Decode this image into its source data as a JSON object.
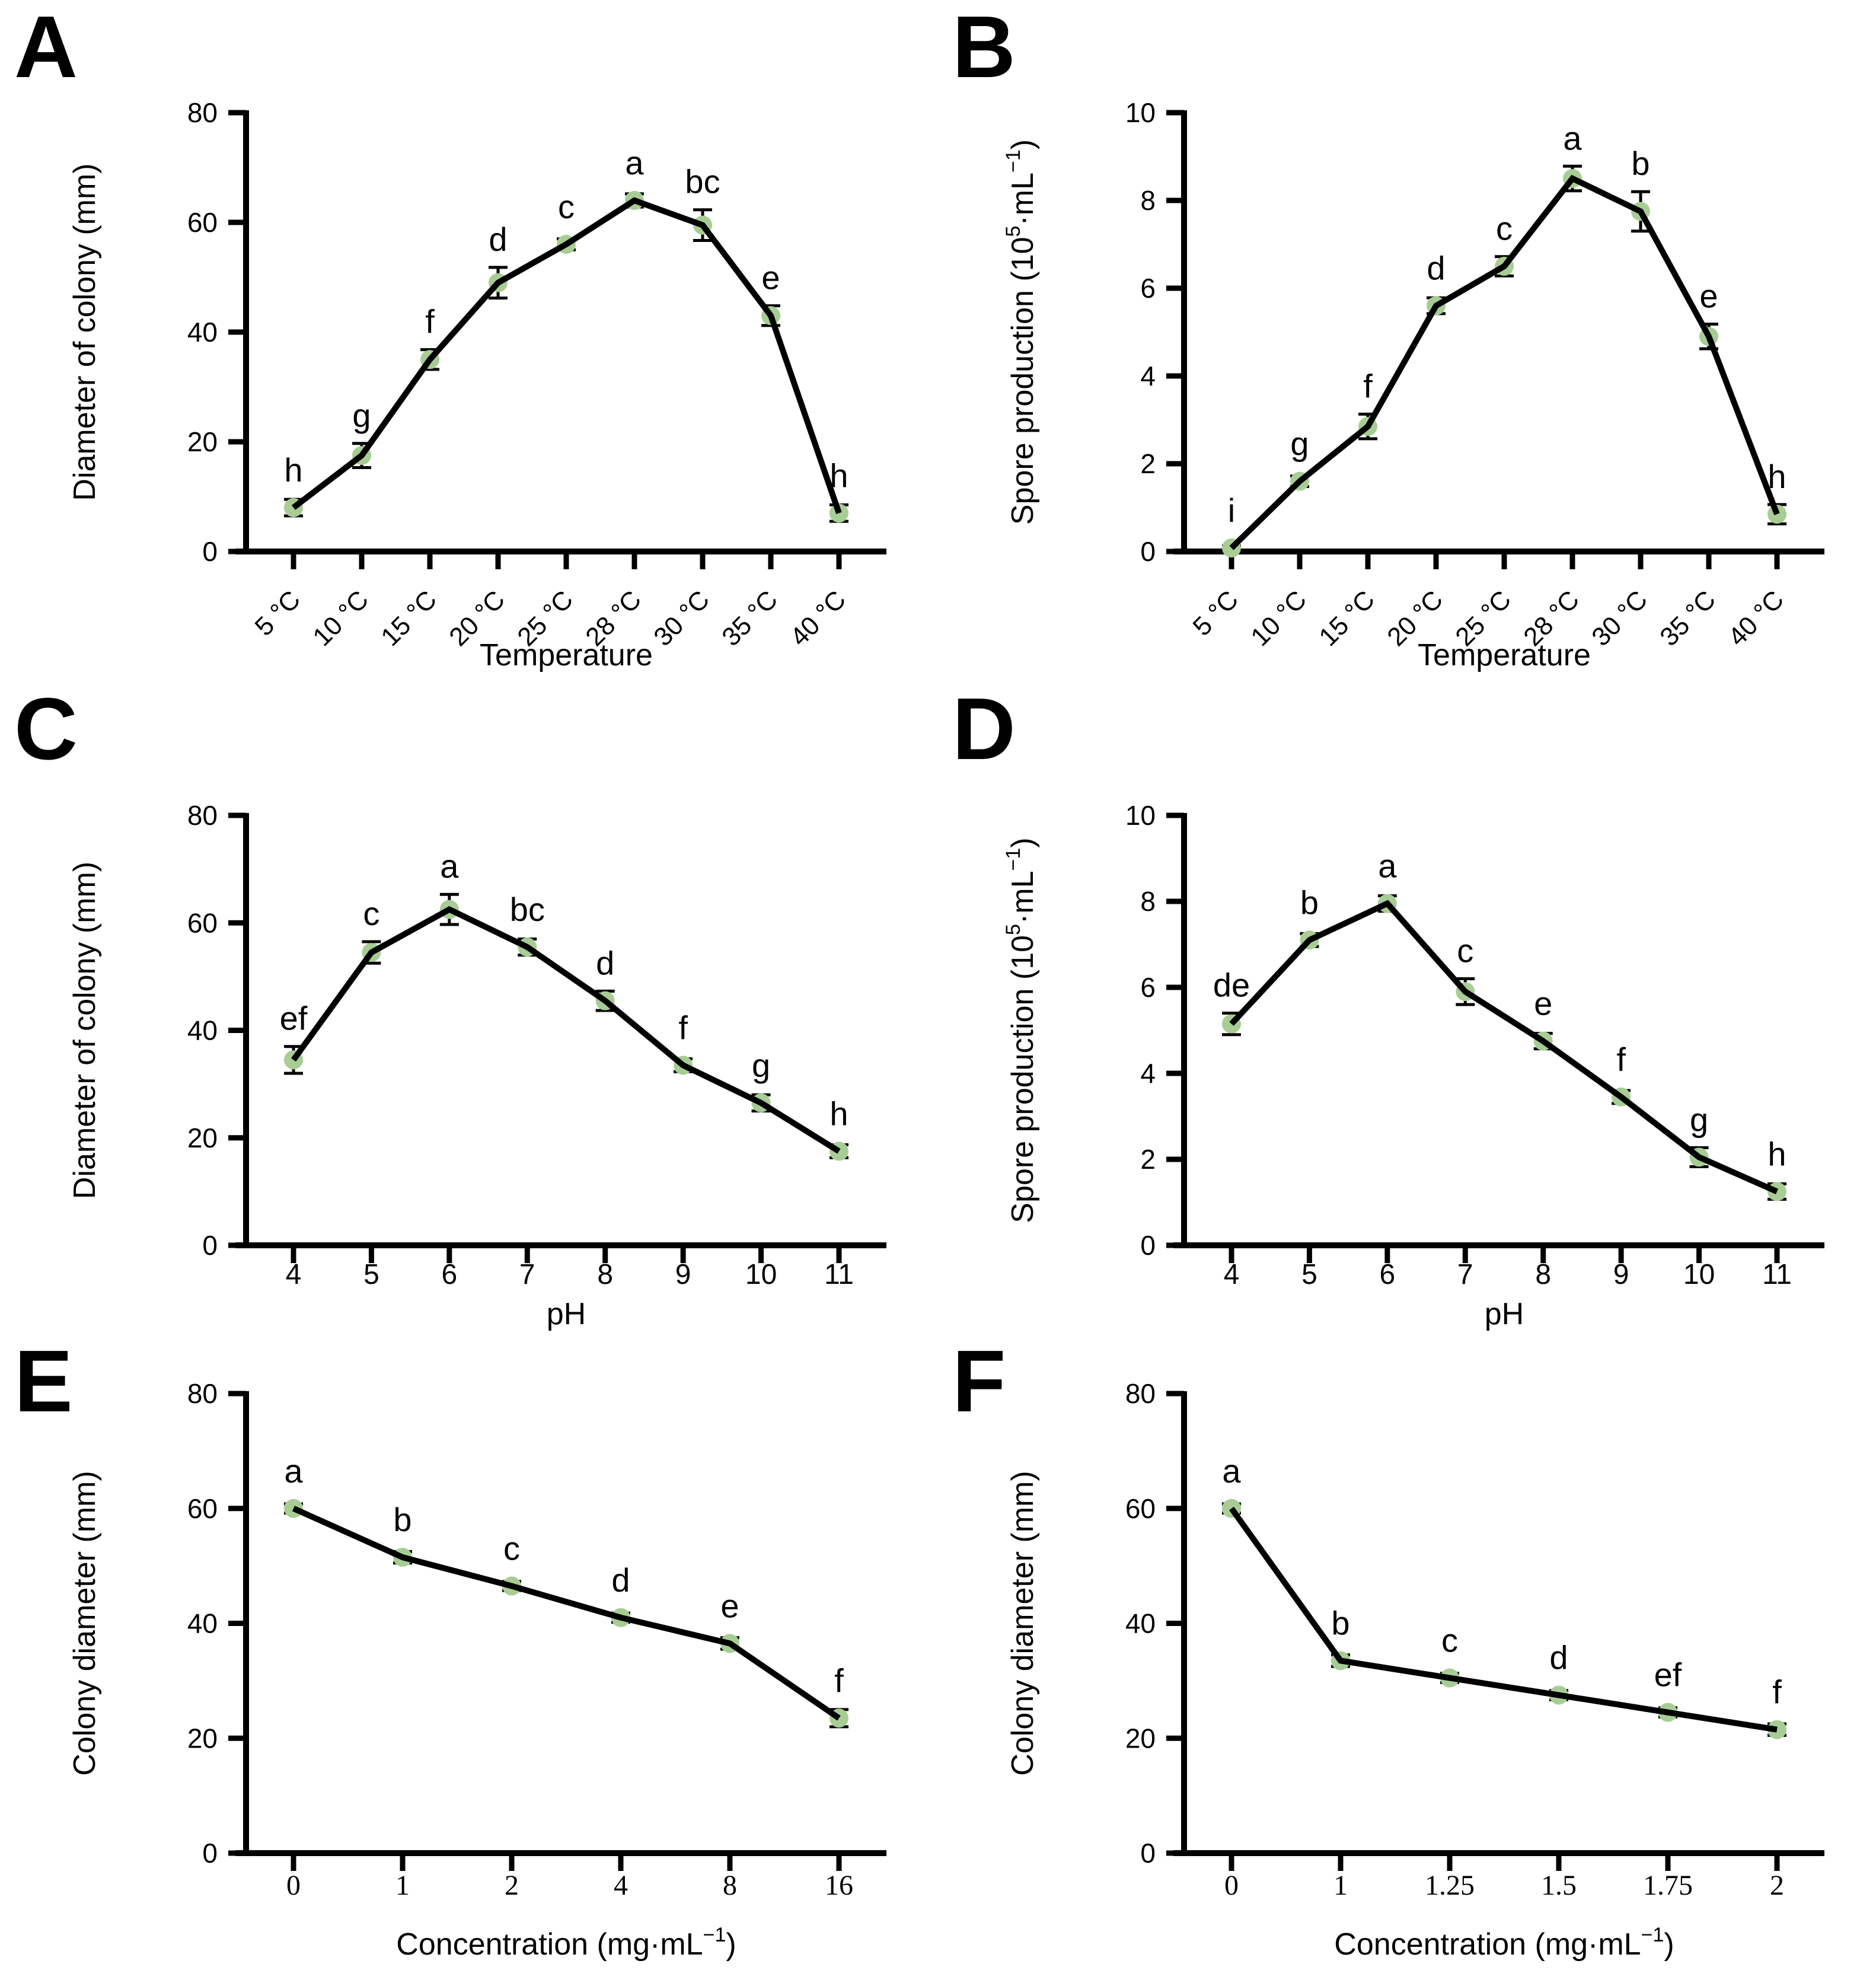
{
  "figure": {
    "background_color": "#ffffff",
    "line_color": "#000000",
    "marker_color": "#a7cd95",
    "text_color": "#000000"
  },
  "chart_data": [
    {
      "type": "line",
      "panel": "A",
      "xlabel": "Temperature",
      "ylabel": "Diameter of colony (mm)",
      "ylim": [
        0,
        80
      ],
      "yticks": [
        0,
        20,
        40,
        60,
        80
      ],
      "rotated_x_labels": true,
      "categories": [
        "5 °C",
        "10 °C",
        "15 °C",
        "20 °C",
        "25 °C",
        "28 °C",
        "30 °C",
        "35 °C",
        "40 °C"
      ],
      "values": [
        8,
        17.5,
        35,
        49,
        56,
        64,
        59.5,
        43,
        7
      ],
      "errors": [
        1.5,
        2.2,
        1.8,
        2.8,
        1.0,
        1.2,
        2.8,
        1.8,
        1.5
      ],
      "point_labels": [
        "h",
        "g",
        "f",
        "d",
        "c",
        "a",
        "bc",
        "e",
        "h"
      ]
    },
    {
      "type": "line",
      "panel": "B",
      "xlabel": "Temperature",
      "ylabel": "Spore production (10⁵·mL⁻¹)",
      "ylim": [
        0,
        10
      ],
      "yticks": [
        0,
        2,
        4,
        6,
        8,
        10
      ],
      "rotated_x_labels": true,
      "categories": [
        "5 °C",
        "10 °C",
        "15 °C",
        "20 °C",
        "25 °C",
        "28 °C",
        "30 °C",
        "35 °C",
        "40 °C"
      ],
      "values": [
        0.08,
        1.6,
        2.85,
        5.6,
        6.5,
        8.5,
        7.75,
        4.9,
        0.85
      ],
      "errors": [
        0.05,
        0.12,
        0.28,
        0.18,
        0.22,
        0.28,
        0.45,
        0.28,
        0.22
      ],
      "point_labels": [
        "i",
        "g",
        "f",
        "d",
        "c",
        "a",
        "b",
        "e",
        "h"
      ]
    },
    {
      "type": "line",
      "panel": "C",
      "xlabel": "pH",
      "ylabel": "Diameter of colony (mm)",
      "ylim": [
        0,
        80
      ],
      "yticks": [
        0,
        20,
        40,
        60,
        80
      ],
      "rotated_x_labels": false,
      "categories": [
        "4",
        "5",
        "6",
        "7",
        "8",
        "9",
        "10",
        "11"
      ],
      "values": [
        34.5,
        54.5,
        62.5,
        55.5,
        45.5,
        33.5,
        26.5,
        17.5
      ],
      "errors": [
        2.5,
        2.0,
        2.8,
        1.5,
        1.8,
        1.2,
        1.5,
        1.2
      ],
      "point_labels": [
        "ef",
        "c",
        "a",
        "bc",
        "d",
        "f",
        "g",
        "h"
      ]
    },
    {
      "type": "line",
      "panel": "D",
      "xlabel": "pH",
      "ylabel": "Spore production (10⁵·mL⁻¹)",
      "ylim": [
        0,
        10
      ],
      "yticks": [
        0,
        2,
        4,
        6,
        8,
        10
      ],
      "rotated_x_labels": false,
      "categories": [
        "4",
        "5",
        "6",
        "7",
        "8",
        "9",
        "10",
        "11"
      ],
      "values": [
        5.15,
        7.1,
        7.95,
        5.9,
        4.75,
        3.45,
        2.05,
        1.25
      ],
      "errors": [
        0.25,
        0.15,
        0.18,
        0.3,
        0.18,
        0.15,
        0.22,
        0.18
      ],
      "point_labels": [
        "de",
        "b",
        "a",
        "c",
        "e",
        "f",
        "g",
        "h"
      ]
    },
    {
      "type": "line",
      "panel": "E",
      "xlabel": "Concentration (mg·mL⁻¹)",
      "ylabel": "Colony diameter (mm)",
      "ylim": [
        0,
        80
      ],
      "yticks": [
        0,
        20,
        40,
        60,
        80
      ],
      "rotated_x_labels": false,
      "categories": [
        "0",
        "1",
        "2",
        "4",
        "8",
        "16"
      ],
      "values": [
        60,
        51.5,
        46.5,
        41,
        36.5,
        23.5
      ],
      "errors": [
        0.8,
        1.0,
        0.8,
        0.8,
        1.0,
        1.5
      ],
      "point_labels": [
        "a",
        "b",
        "c",
        "d",
        "e",
        "f"
      ]
    },
    {
      "type": "line",
      "panel": "F",
      "xlabel": "Concentration (mg·mL⁻¹)",
      "ylabel": "Colony diameter (mm)",
      "ylim": [
        0,
        80
      ],
      "yticks": [
        0,
        20,
        40,
        60,
        80
      ],
      "rotated_x_labels": false,
      "categories": [
        "0",
        "1",
        "1.25",
        "1.5",
        "1.75",
        "2"
      ],
      "values": [
        60,
        33.5,
        30.5,
        27.5,
        24.5,
        21.5
      ],
      "errors": [
        0.8,
        1.0,
        0.8,
        0.8,
        0.8,
        1.0
      ],
      "point_labels": [
        "a",
        "b",
        "c",
        "d",
        "ef",
        "f"
      ]
    }
  ]
}
